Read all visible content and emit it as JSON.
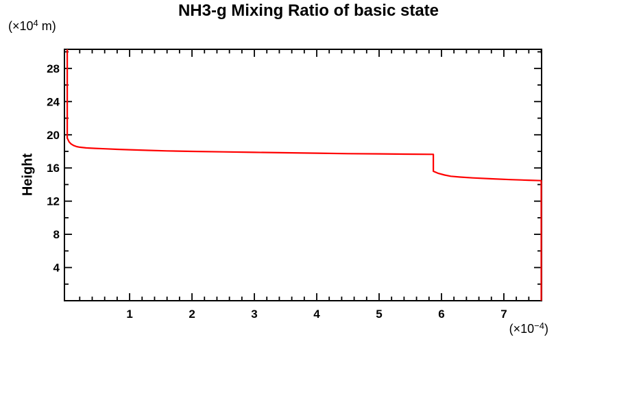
{
  "chart_data": {
    "type": "line",
    "title": "NH3-g Mixing Ratio of basic state",
    "ylabel": "Height",
    "xlabel": "",
    "y_unit": {
      "prefix": "(×10",
      "exponent": "4",
      "suffix": " m)"
    },
    "x_unit": {
      "prefix": "(×10",
      "exponent": "−4",
      "suffix": ")"
    },
    "xlim": [
      -0.045,
      7.605
    ],
    "ylim": [
      0,
      30.3
    ],
    "x_major_ticks": [
      1,
      2,
      3,
      4,
      5,
      6,
      7
    ],
    "x_tick_labels": [
      "1",
      "2",
      "3",
      "4",
      "5",
      "6",
      "7"
    ],
    "x_minor_step": 0.2,
    "y_major_ticks": [
      4,
      8,
      12,
      16,
      20,
      24,
      28
    ],
    "y_tick_labels": [
      "4",
      "8",
      "12",
      "16",
      "20",
      "24",
      "28"
    ],
    "y_minor_step": 2,
    "grid": false,
    "legend": "none",
    "line_color": "#ff0000",
    "axis_color": "#000000",
    "series": [
      {
        "points": [
          [
            0,
            30.3
          ],
          [
            0,
            19.6
          ],
          [
            0.03,
            19.15
          ],
          [
            0.06,
            18.9
          ],
          [
            0.1,
            18.72
          ],
          [
            0.15,
            18.58
          ],
          [
            0.2,
            18.5
          ],
          [
            0.3,
            18.42
          ],
          [
            0.45,
            18.36
          ],
          [
            0.6,
            18.31
          ],
          [
            0.8,
            18.25
          ],
          [
            1.0,
            18.2
          ],
          [
            1.3,
            18.12
          ],
          [
            1.6,
            18.06
          ],
          [
            2.0,
            18.0
          ],
          [
            2.5,
            17.94
          ],
          [
            3.0,
            17.88
          ],
          [
            3.5,
            17.83
          ],
          [
            4.0,
            17.78
          ],
          [
            4.5,
            17.73
          ],
          [
            5.0,
            17.7
          ],
          [
            5.4,
            17.67
          ],
          [
            5.87,
            17.64
          ],
          [
            5.87,
            15.6
          ],
          [
            5.95,
            15.35
          ],
          [
            6.05,
            15.15
          ],
          [
            6.15,
            15.0
          ],
          [
            6.3,
            14.9
          ],
          [
            6.5,
            14.8
          ],
          [
            6.8,
            14.7
          ],
          [
            7.1,
            14.6
          ],
          [
            7.4,
            14.52
          ],
          [
            7.6,
            14.47
          ],
          [
            7.6,
            0
          ]
        ]
      }
    ]
  }
}
